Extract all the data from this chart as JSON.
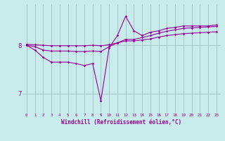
{
  "xlabel": "Windchill (Refroidissement éolien,°C)",
  "bg_color": "#c8ecec",
  "line_color": "#990099",
  "grid_color": "#9ab8b8",
  "x_values": [
    0,
    1,
    2,
    3,
    4,
    5,
    6,
    7,
    8,
    9,
    10,
    11,
    12,
    13,
    14,
    15,
    16,
    17,
    18,
    19,
    20,
    21,
    22,
    23
  ],
  "line1": [
    8.0,
    7.9,
    7.75,
    7.65,
    7.65,
    7.65,
    7.62,
    7.58,
    7.62,
    6.85,
    7.95,
    8.2,
    8.6,
    8.3,
    8.2,
    8.27,
    8.3,
    8.35,
    8.37,
    8.4,
    8.4,
    8.4,
    8.4,
    8.42
  ],
  "line2": [
    8.0,
    7.97,
    7.9,
    7.88,
    7.88,
    7.88,
    7.87,
    7.87,
    7.88,
    7.87,
    7.97,
    8.05,
    8.12,
    8.12,
    8.16,
    8.2,
    8.25,
    8.29,
    8.32,
    8.35,
    8.36,
    8.37,
    8.38,
    8.39
  ],
  "line3": [
    8.02,
    8.01,
    8.0,
    7.99,
    7.99,
    7.99,
    7.99,
    7.99,
    8.0,
    7.99,
    8.01,
    8.05,
    8.09,
    8.09,
    8.11,
    8.13,
    8.17,
    8.2,
    8.22,
    8.24,
    8.25,
    8.26,
    8.27,
    8.28
  ],
  "ylim": [
    6.6,
    8.85
  ],
  "yticks": [
    7,
    8
  ],
  "xlim": [
    -0.5,
    23.5
  ],
  "xtick_labels": [
    "0",
    "1",
    "2",
    "3",
    "4",
    "5",
    "6",
    "7",
    "8",
    "9",
    "10",
    "11",
    "12",
    "13",
    "14",
    "15",
    "16",
    "17",
    "18",
    "19",
    "20",
    "21",
    "22",
    "23"
  ]
}
